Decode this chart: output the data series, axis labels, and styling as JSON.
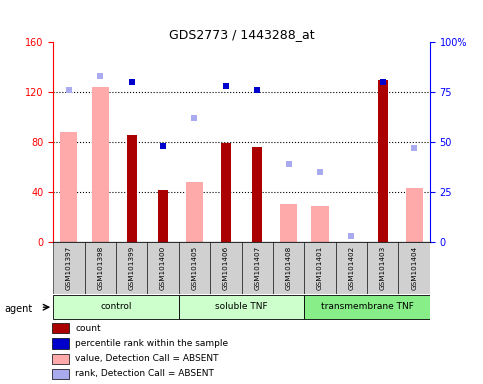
{
  "title": "GDS2773 / 1443288_at",
  "samples": [
    "GSM101397",
    "GSM101398",
    "GSM101399",
    "GSM101400",
    "GSM101405",
    "GSM101406",
    "GSM101407",
    "GSM101408",
    "GSM101401",
    "GSM101402",
    "GSM101403",
    "GSM101404"
  ],
  "count": [
    null,
    null,
    86,
    42,
    null,
    79,
    76,
    null,
    null,
    null,
    130,
    null
  ],
  "percentile_rank": [
    null,
    null,
    80,
    48,
    null,
    78,
    76,
    null,
    null,
    null,
    80,
    null
  ],
  "value_absent": [
    88,
    124,
    null,
    null,
    48,
    null,
    null,
    30,
    29,
    null,
    null,
    43
  ],
  "rank_absent": [
    76,
    83,
    null,
    null,
    62,
    null,
    null,
    39,
    35,
    3,
    null,
    47
  ],
  "ylim_left": [
    0,
    160
  ],
  "ylim_right": [
    0,
    100
  ],
  "yticks_left": [
    0,
    40,
    80,
    120,
    160
  ],
  "yticks_right": [
    0,
    25,
    50,
    75,
    100
  ],
  "yticklabels_right": [
    "0",
    "25",
    "50",
    "75",
    "100%"
  ],
  "color_count": "#aa0000",
  "color_rank": "#0000cc",
  "color_value_absent": "#ffaaaa",
  "color_rank_absent": "#aaaaee",
  "group_defs": [
    {
      "name": "control",
      "start": 0,
      "end": 3,
      "color": "#ccffcc"
    },
    {
      "name": "soluble TNF",
      "start": 4,
      "end": 7,
      "color": "#ccffcc"
    },
    {
      "name": "transmembrane TNF",
      "start": 8,
      "end": 11,
      "color": "#88ee88"
    }
  ],
  "legend_items": [
    {
      "color": "#aa0000",
      "label": "count"
    },
    {
      "color": "#0000cc",
      "label": "percentile rank within the sample"
    },
    {
      "color": "#ffaaaa",
      "label": "value, Detection Call = ABSENT"
    },
    {
      "color": "#aaaaee",
      "label": "rank, Detection Call = ABSENT"
    }
  ]
}
